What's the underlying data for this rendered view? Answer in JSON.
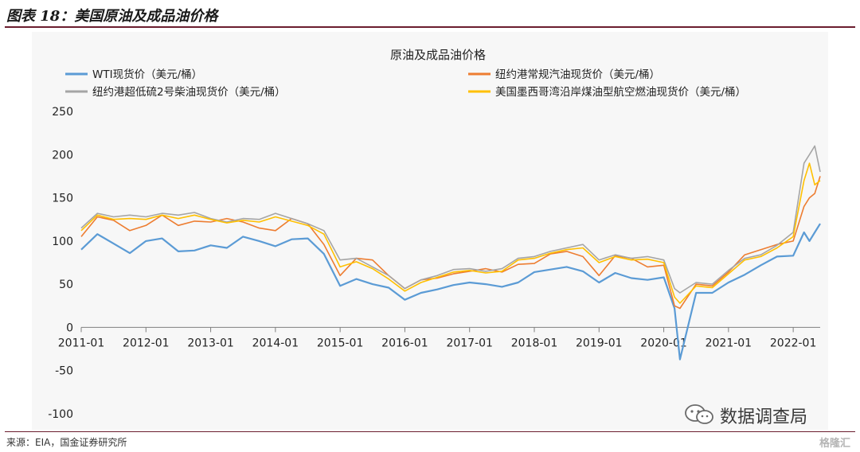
{
  "header": {
    "title": "图表 18：美国原油及成品油价格"
  },
  "footer": {
    "source": "来源：EIA，国金证券研究所",
    "brand_mark": "格隆汇"
  },
  "watermark": {
    "text": "数据调查局",
    "icon": "wechat-icon"
  },
  "colors": {
    "wti": "#5b9bd5",
    "gasoline": "#ed7d31",
    "diesel": "#a5a5a5",
    "jet": "#ffc000",
    "title_rule": "#6b1d2e"
  },
  "chart_data": {
    "type": "line",
    "title": "原油及成品油价格",
    "xlabel": "",
    "ylabel": "",
    "ylim": [
      -100,
      250
    ],
    "yticks": [
      "250",
      "200",
      "150",
      "100",
      "50",
      "0",
      "-50",
      "-100"
    ],
    "xticks": [
      "2011-01",
      "2012-01",
      "2013-01",
      "2014-01",
      "2015-01",
      "2016-01",
      "2017-01",
      "2018-01",
      "2019-01",
      "2020-01",
      "2021-01",
      "2022-01"
    ],
    "xrange": [
      "2011-01",
      "2022-06"
    ],
    "grid": false,
    "legend_position": "top",
    "x": [
      "2011-01",
      "2011-04",
      "2011-07",
      "2011-10",
      "2012-01",
      "2012-04",
      "2012-07",
      "2012-10",
      "2013-01",
      "2013-04",
      "2013-07",
      "2013-10",
      "2014-01",
      "2014-04",
      "2014-07",
      "2014-10",
      "2015-01",
      "2015-04",
      "2015-07",
      "2015-10",
      "2016-01",
      "2016-04",
      "2016-07",
      "2016-10",
      "2017-01",
      "2017-04",
      "2017-07",
      "2017-10",
      "2018-01",
      "2018-04",
      "2018-07",
      "2018-10",
      "2019-01",
      "2019-04",
      "2019-07",
      "2019-10",
      "2020-01",
      "2020-03",
      "2020-04",
      "2020-07",
      "2020-10",
      "2021-01",
      "2021-04",
      "2021-07",
      "2021-10",
      "2022-01",
      "2022-03",
      "2022-04",
      "2022-05",
      "2022-06"
    ],
    "series": [
      {
        "name": "WTI现货价（美元/桶）",
        "color": "#5b9bd5",
        "values": [
          90,
          108,
          97,
          86,
          100,
          103,
          88,
          89,
          95,
          92,
          105,
          100,
          94,
          102,
          103,
          85,
          48,
          56,
          50,
          46,
          32,
          40,
          44,
          49,
          52,
          50,
          47,
          52,
          64,
          67,
          70,
          65,
          52,
          63,
          57,
          55,
          58,
          22,
          -37,
          40,
          40,
          52,
          61,
          72,
          82,
          83,
          110,
          100,
          110,
          120
        ]
      },
      {
        "name": "纽约港常规汽油现货价（美元/桶）",
        "color": "#ed7d31",
        "values": [
          105,
          128,
          124,
          112,
          118,
          130,
          118,
          123,
          122,
          126,
          122,
          115,
          112,
          126,
          120,
          96,
          60,
          80,
          78,
          60,
          45,
          55,
          57,
          62,
          65,
          68,
          64,
          73,
          74,
          85,
          88,
          82,
          60,
          83,
          80,
          70,
          72,
          25,
          22,
          50,
          48,
          64,
          84,
          90,
          96,
          100,
          140,
          150,
          155,
          175
        ]
      },
      {
        "name": "纽约港超低硫2号柴油现货价（美元/桶）",
        "color": "#a5a5a5",
        "values": [
          115,
          132,
          128,
          130,
          128,
          132,
          130,
          133,
          126,
          122,
          126,
          125,
          132,
          126,
          120,
          112,
          78,
          80,
          70,
          60,
          45,
          55,
          60,
          67,
          68,
          65,
          68,
          80,
          82,
          88,
          92,
          96,
          78,
          84,
          80,
          82,
          78,
          45,
          40,
          52,
          50,
          66,
          80,
          84,
          95,
          110,
          190,
          200,
          210,
          180
        ]
      },
      {
        "name": "美国墨西哥湾沿岸煤油型航空燃油现货价（美元/桶）",
        "color": "#ffc000",
        "values": [
          112,
          130,
          125,
          126,
          125,
          130,
          126,
          130,
          125,
          121,
          124,
          122,
          128,
          123,
          118,
          108,
          70,
          76,
          68,
          56,
          42,
          52,
          58,
          64,
          66,
          63,
          65,
          78,
          80,
          86,
          90,
          92,
          75,
          82,
          78,
          79,
          75,
          35,
          28,
          48,
          46,
          62,
          78,
          82,
          92,
          105,
          170,
          190,
          165,
          170
        ]
      }
    ]
  }
}
